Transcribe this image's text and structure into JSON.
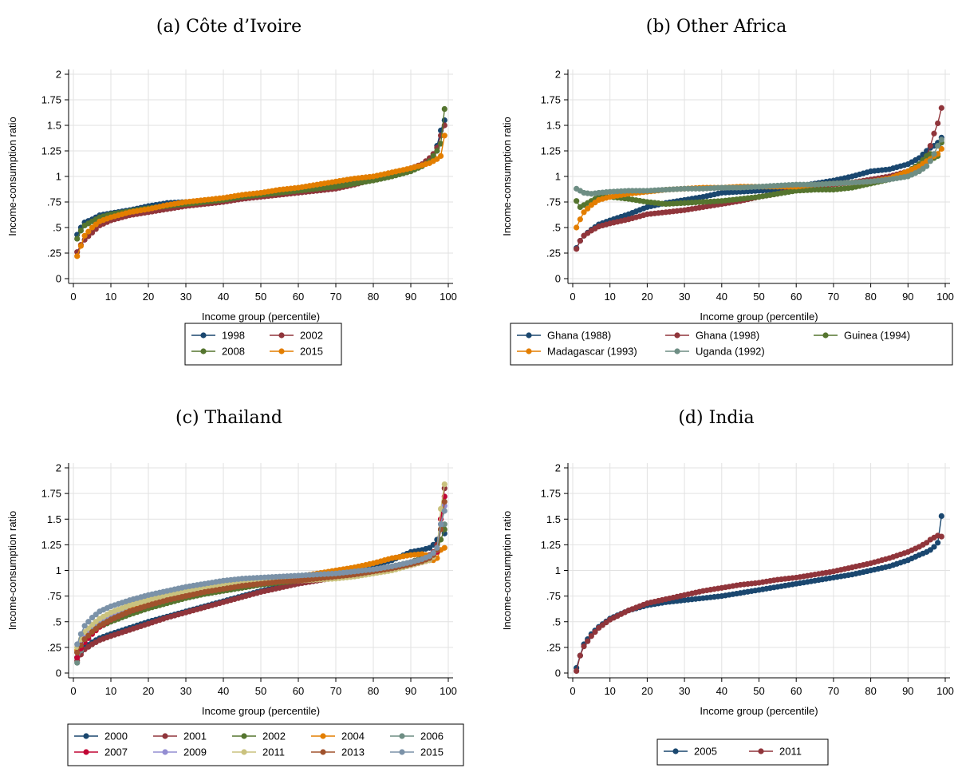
{
  "chart_data": [
    {
      "type": "line",
      "title": "(a) Côte d’Ivoire",
      "xlabel": "Income group (percentile)",
      "ylabel": "Income-consumption ratio",
      "xlim": [
        0,
        100
      ],
      "ylim": [
        0,
        2
      ],
      "x_ticks": [
        0,
        10,
        20,
        30,
        40,
        50,
        60,
        70,
        80,
        90,
        100
      ],
      "y_ticks": [
        {
          "v": 0,
          "label": "0"
        },
        {
          "v": 0.25,
          "label": ".25"
        },
        {
          "v": 0.5,
          "label": ".5"
        },
        {
          "v": 0.75,
          "label": ".75"
        },
        {
          "v": 1,
          "label": "1"
        },
        {
          "v": 1.25,
          "label": "1.25"
        },
        {
          "v": 1.5,
          "label": "1.5"
        },
        {
          "v": 1.75,
          "label": "1.75"
        },
        {
          "v": 2,
          "label": "2"
        }
      ],
      "grid": true,
      "legend_columns": 2,
      "x": [
        1,
        2,
        3,
        5,
        7,
        10,
        15,
        20,
        25,
        30,
        35,
        40,
        45,
        50,
        55,
        60,
        65,
        70,
        75,
        80,
        85,
        90,
        93,
        95,
        96,
        97,
        98,
        99
      ],
      "series": [
        {
          "name": "1998",
          "color": "#1a476f",
          "values": [
            0.43,
            0.5,
            0.55,
            0.58,
            0.62,
            0.64,
            0.67,
            0.71,
            0.74,
            0.75,
            0.76,
            0.77,
            0.8,
            0.82,
            0.84,
            0.87,
            0.89,
            0.92,
            0.95,
            0.99,
            1.02,
            1.06,
            1.1,
            1.15,
            1.2,
            1.3,
            1.45,
            1.55
          ]
        },
        {
          "name": "2002",
          "color": "#90353b",
          "values": [
            0.26,
            0.33,
            0.38,
            0.45,
            0.52,
            0.57,
            0.62,
            0.65,
            0.68,
            0.71,
            0.73,
            0.75,
            0.78,
            0.8,
            0.82,
            0.84,
            0.86,
            0.88,
            0.92,
            0.97,
            1.03,
            1.08,
            1.12,
            1.18,
            1.22,
            1.28,
            1.4,
            1.5
          ]
        },
        {
          "name": "2008",
          "color": "#55752f",
          "values": [
            0.39,
            0.47,
            0.52,
            0.56,
            0.6,
            0.63,
            0.66,
            0.69,
            0.71,
            0.73,
            0.75,
            0.77,
            0.8,
            0.82,
            0.84,
            0.86,
            0.88,
            0.9,
            0.93,
            0.96,
            1.0,
            1.05,
            1.1,
            1.15,
            1.2,
            1.25,
            1.32,
            1.66
          ]
        },
        {
          "name": "2015",
          "color": "#e37e00",
          "values": [
            0.22,
            0.32,
            0.42,
            0.5,
            0.56,
            0.6,
            0.65,
            0.68,
            0.72,
            0.75,
            0.77,
            0.79,
            0.82,
            0.84,
            0.87,
            0.89,
            0.92,
            0.95,
            0.98,
            1.0,
            1.04,
            1.08,
            1.11,
            1.13,
            1.15,
            1.17,
            1.2,
            1.4
          ]
        }
      ]
    },
    {
      "type": "line",
      "title": "(b) Other Africa",
      "xlabel": "Income group (percentile)",
      "ylabel": "Income-consumption ratio",
      "xlim": [
        0,
        100
      ],
      "ylim": [
        0,
        2
      ],
      "x_ticks": [
        0,
        10,
        20,
        30,
        40,
        50,
        60,
        70,
        80,
        90,
        100
      ],
      "y_ticks": [
        {
          "v": 0,
          "label": "0"
        },
        {
          "v": 0.25,
          "label": ".25"
        },
        {
          "v": 0.5,
          "label": ".5"
        },
        {
          "v": 0.75,
          "label": ".75"
        },
        {
          "v": 1,
          "label": "1"
        },
        {
          "v": 1.25,
          "label": "1.25"
        },
        {
          "v": 1.5,
          "label": "1.5"
        },
        {
          "v": 1.75,
          "label": "1.75"
        },
        {
          "v": 2,
          "label": "2"
        }
      ],
      "grid": true,
      "legend_columns": 3,
      "x": [
        1,
        2,
        3,
        5,
        7,
        10,
        15,
        20,
        25,
        30,
        35,
        40,
        45,
        50,
        55,
        60,
        65,
        70,
        75,
        80,
        85,
        90,
        93,
        95,
        96,
        97,
        98,
        99
      ],
      "series": [
        {
          "name": "Ghana (1988)",
          "color": "#1a476f",
          "values": [
            0.3,
            0.37,
            0.42,
            0.48,
            0.53,
            0.57,
            0.63,
            0.7,
            0.74,
            0.77,
            0.8,
            0.84,
            0.85,
            0.86,
            0.87,
            0.9,
            0.93,
            0.96,
            1.0,
            1.05,
            1.07,
            1.12,
            1.18,
            1.25,
            1.28,
            1.3,
            1.33,
            1.38
          ]
        },
        {
          "name": "Ghana (1998)",
          "color": "#90353b",
          "values": [
            0.29,
            0.37,
            0.42,
            0.47,
            0.51,
            0.54,
            0.58,
            0.63,
            0.65,
            0.67,
            0.7,
            0.73,
            0.76,
            0.8,
            0.83,
            0.87,
            0.89,
            0.92,
            0.94,
            0.97,
            1.0,
            1.05,
            1.1,
            1.2,
            1.3,
            1.42,
            1.52,
            1.67
          ]
        },
        {
          "name": "Guinea (1994)",
          "color": "#55752f",
          "values": [
            0.76,
            0.7,
            0.72,
            0.76,
            0.8,
            0.8,
            0.78,
            0.75,
            0.73,
            0.74,
            0.75,
            0.76,
            0.78,
            0.8,
            0.83,
            0.86,
            0.87,
            0.87,
            0.89,
            0.93,
            0.97,
            1.05,
            1.12,
            1.2,
            1.22,
            1.18,
            1.2,
            1.33
          ]
        },
        {
          "name": "Madagascar (1993)",
          "color": "#e37e00",
          "values": [
            0.5,
            0.58,
            0.65,
            0.72,
            0.77,
            0.8,
            0.83,
            0.85,
            0.87,
            0.88,
            0.89,
            0.89,
            0.9,
            0.9,
            0.9,
            0.9,
            0.92,
            0.93,
            0.94,
            0.95,
            0.98,
            1.05,
            1.1,
            1.15,
            1.17,
            1.2,
            1.22,
            1.27
          ]
        },
        {
          "name": "Uganda (1992)",
          "color": "#6e8e84",
          "values": [
            0.88,
            0.86,
            0.84,
            0.83,
            0.84,
            0.85,
            0.86,
            0.86,
            0.87,
            0.88,
            0.88,
            0.89,
            0.89,
            0.9,
            0.91,
            0.92,
            0.92,
            0.93,
            0.94,
            0.95,
            0.97,
            1.0,
            1.05,
            1.1,
            1.15,
            1.22,
            1.3,
            1.36
          ]
        }
      ]
    },
    {
      "type": "line",
      "title": "(c) Thailand",
      "xlabel": "Income group (percentile)",
      "ylabel": "Income-consumption ratio",
      "xlim": [
        0,
        100
      ],
      "ylim": [
        0,
        2
      ],
      "x_ticks": [
        0,
        10,
        20,
        30,
        40,
        50,
        60,
        70,
        80,
        90,
        100
      ],
      "y_ticks": [
        {
          "v": 0,
          "label": "0"
        },
        {
          "v": 0.25,
          "label": ".25"
        },
        {
          "v": 0.5,
          "label": ".5"
        },
        {
          "v": 0.75,
          "label": ".75"
        },
        {
          "v": 1,
          "label": "1"
        },
        {
          "v": 1.25,
          "label": "1.25"
        },
        {
          "v": 1.5,
          "label": "1.5"
        },
        {
          "v": 1.75,
          "label": "1.75"
        },
        {
          "v": 2,
          "label": "2"
        }
      ],
      "grid": true,
      "legend_columns": 5,
      "x": [
        1,
        2,
        3,
        5,
        7,
        10,
        15,
        20,
        25,
        30,
        35,
        40,
        45,
        50,
        55,
        60,
        65,
        70,
        75,
        80,
        85,
        90,
        93,
        95,
        96,
        97,
        98,
        99
      ],
      "series": [
        {
          "name": "2000",
          "color": "#1a476f",
          "values": [
            0.15,
            0.2,
            0.25,
            0.3,
            0.34,
            0.38,
            0.44,
            0.5,
            0.55,
            0.6,
            0.65,
            0.7,
            0.75,
            0.8,
            0.84,
            0.88,
            0.92,
            0.96,
            1.0,
            1.05,
            1.1,
            1.18,
            1.2,
            1.22,
            1.25,
            1.3,
            1.4,
            1.36
          ]
        },
        {
          "name": "2001",
          "color": "#90353b",
          "values": [
            0.12,
            0.18,
            0.23,
            0.28,
            0.32,
            0.36,
            0.42,
            0.48,
            0.54,
            0.59,
            0.64,
            0.69,
            0.74,
            0.79,
            0.83,
            0.87,
            0.9,
            0.93,
            0.96,
            0.99,
            1.03,
            1.08,
            1.12,
            1.15,
            1.18,
            1.25,
            1.5,
            1.8
          ]
        },
        {
          "name": "2002",
          "color": "#55752f",
          "values": [
            0.2,
            0.28,
            0.34,
            0.4,
            0.45,
            0.5,
            0.57,
            0.63,
            0.68,
            0.73,
            0.77,
            0.8,
            0.83,
            0.86,
            0.88,
            0.9,
            0.92,
            0.94,
            0.97,
            1.0,
            1.04,
            1.08,
            1.12,
            1.14,
            1.16,
            1.2,
            1.3,
            1.4
          ]
        },
        {
          "name": "2004",
          "color": "#e37e00",
          "values": [
            0.22,
            0.3,
            0.37,
            0.44,
            0.5,
            0.56,
            0.63,
            0.69,
            0.74,
            0.79,
            0.83,
            0.86,
            0.88,
            0.9,
            0.92,
            0.94,
            0.97,
            1.0,
            1.03,
            1.07,
            1.12,
            1.15,
            1.16,
            1.14,
            1.1,
            1.12,
            1.2,
            1.22
          ]
        },
        {
          "name": "2006",
          "color": "#6e8e84",
          "values": [
            0.1,
            0.22,
            0.32,
            0.43,
            0.5,
            0.57,
            0.66,
            0.73,
            0.78,
            0.82,
            0.86,
            0.88,
            0.9,
            0.92,
            0.93,
            0.94,
            0.95,
            0.96,
            0.98,
            1.0,
            1.03,
            1.07,
            1.1,
            1.12,
            1.15,
            1.2,
            1.4,
            1.45
          ]
        },
        {
          "name": "2007",
          "color": "#c10534",
          "values": [
            0.15,
            0.24,
            0.3,
            0.38,
            0.45,
            0.52,
            0.6,
            0.66,
            0.72,
            0.76,
            0.8,
            0.83,
            0.86,
            0.88,
            0.9,
            0.91,
            0.92,
            0.93,
            0.95,
            0.98,
            1.01,
            1.05,
            1.08,
            1.1,
            1.13,
            1.18,
            1.5,
            1.72
          ]
        },
        {
          "name": "2009",
          "color": "#938dd2",
          "values": [
            0.2,
            0.3,
            0.37,
            0.46,
            0.52,
            0.58,
            0.66,
            0.72,
            0.77,
            0.81,
            0.84,
            0.87,
            0.89,
            0.91,
            0.92,
            0.93,
            0.94,
            0.95,
            0.97,
            0.99,
            1.02,
            1.06,
            1.09,
            1.12,
            1.15,
            1.2,
            1.45,
            1.63
          ]
        },
        {
          "name": "2011",
          "color": "#cac27e",
          "values": [
            0.25,
            0.33,
            0.4,
            0.47,
            0.53,
            0.59,
            0.66,
            0.71,
            0.76,
            0.8,
            0.83,
            0.86,
            0.88,
            0.89,
            0.9,
            0.9,
            0.91,
            0.92,
            0.94,
            0.97,
            1.0,
            1.05,
            1.08,
            1.1,
            1.13,
            1.2,
            1.6,
            1.84
          ]
        },
        {
          "name": "2013",
          "color": "#a0522d",
          "values": [
            0.2,
            0.27,
            0.33,
            0.4,
            0.46,
            0.52,
            0.6,
            0.66,
            0.71,
            0.75,
            0.79,
            0.82,
            0.85,
            0.87,
            0.89,
            0.9,
            0.92,
            0.94,
            0.96,
            0.99,
            1.02,
            1.06,
            1.09,
            1.12,
            1.15,
            1.2,
            1.4,
            1.67
          ]
        },
        {
          "name": "2015",
          "color": "#7b92a8",
          "values": [
            0.28,
            0.38,
            0.46,
            0.54,
            0.6,
            0.65,
            0.71,
            0.76,
            0.8,
            0.84,
            0.87,
            0.9,
            0.92,
            0.93,
            0.94,
            0.95,
            0.96,
            0.97,
            0.99,
            1.01,
            1.04,
            1.08,
            1.11,
            1.14,
            1.17,
            1.22,
            1.45,
            1.58
          ]
        }
      ]
    },
    {
      "type": "line",
      "title": "(d) India",
      "xlabel": "Income group (percentile)",
      "ylabel": "Income-consumption ratio",
      "xlim": [
        0,
        100
      ],
      "ylim": [
        0,
        2
      ],
      "x_ticks": [
        0,
        10,
        20,
        30,
        40,
        50,
        60,
        70,
        80,
        90,
        100
      ],
      "y_ticks": [
        {
          "v": 0,
          "label": "0"
        },
        {
          "v": 0.25,
          "label": ".25"
        },
        {
          "v": 0.5,
          "label": ".5"
        },
        {
          "v": 0.75,
          "label": ".75"
        },
        {
          "v": 1,
          "label": "1"
        },
        {
          "v": 1.25,
          "label": "1.25"
        },
        {
          "v": 1.5,
          "label": "1.5"
        },
        {
          "v": 1.75,
          "label": "1.75"
        },
        {
          "v": 2,
          "label": "2"
        }
      ],
      "grid": true,
      "legend_columns": 2,
      "x": [
        1,
        2,
        3,
        5,
        7,
        10,
        15,
        20,
        25,
        30,
        35,
        40,
        45,
        50,
        55,
        60,
        65,
        70,
        75,
        80,
        85,
        90,
        93,
        95,
        96,
        97,
        98,
        99
      ],
      "series": [
        {
          "name": "2005",
          "color": "#1a476f",
          "values": [
            0.05,
            0.17,
            0.28,
            0.38,
            0.45,
            0.53,
            0.61,
            0.66,
            0.69,
            0.71,
            0.73,
            0.75,
            0.78,
            0.81,
            0.84,
            0.87,
            0.9,
            0.93,
            0.96,
            1.0,
            1.04,
            1.1,
            1.15,
            1.18,
            1.2,
            1.23,
            1.27,
            1.53
          ]
        },
        {
          "name": "2011",
          "color": "#90353b",
          "values": [
            0.02,
            0.17,
            0.26,
            0.36,
            0.44,
            0.52,
            0.61,
            0.68,
            0.72,
            0.76,
            0.8,
            0.83,
            0.86,
            0.88,
            0.91,
            0.93,
            0.96,
            0.99,
            1.03,
            1.07,
            1.12,
            1.18,
            1.23,
            1.27,
            1.3,
            1.32,
            1.34,
            1.33
          ]
        }
      ]
    }
  ]
}
